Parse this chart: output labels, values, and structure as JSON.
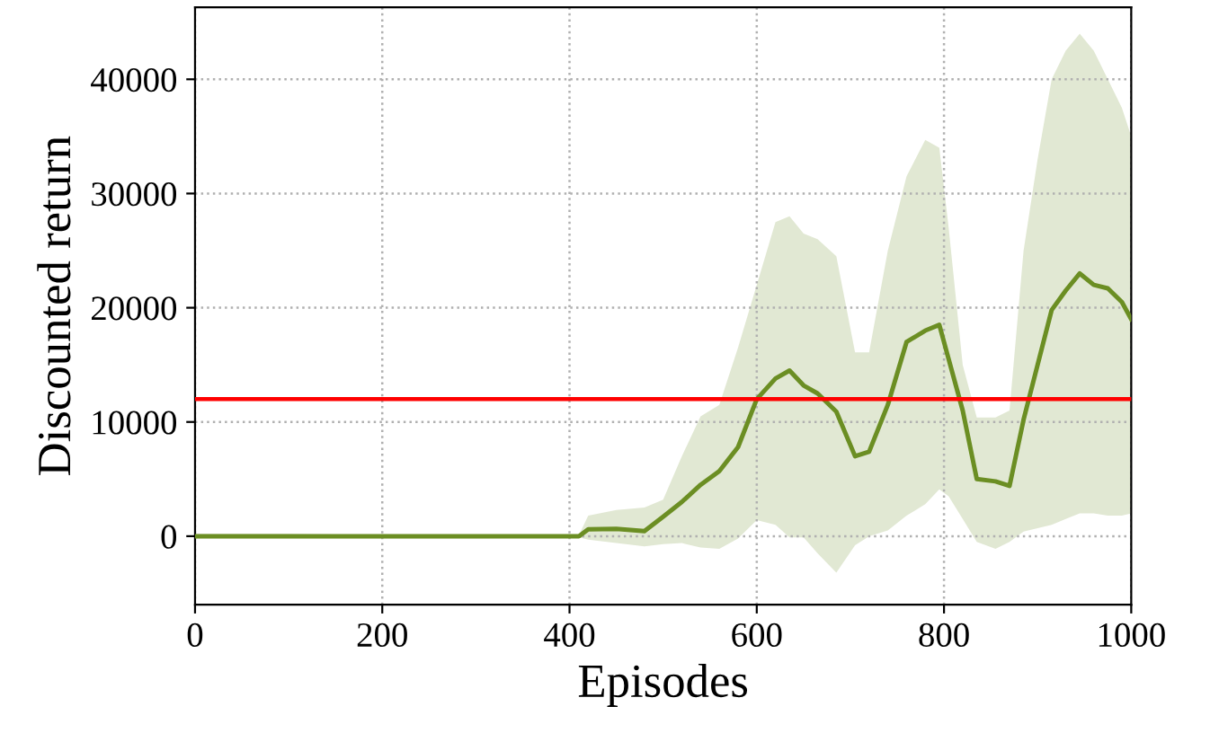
{
  "chart_data": {
    "type": "line",
    "xlabel": "Episodes",
    "ylabel": "Discounted return",
    "x": [
      0,
      100,
      200,
      300,
      400,
      410,
      420,
      450,
      480,
      500,
      520,
      540,
      560,
      580,
      600,
      620,
      635,
      650,
      665,
      685,
      705,
      720,
      740,
      760,
      780,
      795,
      805,
      820,
      835,
      855,
      870,
      885,
      900,
      915,
      930,
      945,
      960,
      975,
      990,
      1000
    ],
    "series": [
      {
        "color": "#6b8e23",
        "values": [
          0,
          0,
          0,
          0,
          0,
          0,
          600,
          650,
          440,
          1700,
          3000,
          4500,
          5700,
          7800,
          12000,
          13800,
          14500,
          13200,
          12500,
          10900,
          7000,
          7400,
          11500,
          17000,
          18000,
          18500,
          15500,
          11000,
          5000,
          4800,
          4400,
          10200,
          15000,
          19800,
          21500,
          23000,
          22000,
          21700,
          20500,
          19000
        ],
        "upper": [
          200,
          200,
          100,
          100,
          100,
          100,
          1800,
          2300,
          2500,
          3200,
          7000,
          10500,
          11500,
          16500,
          22000,
          27500,
          28000,
          26500,
          26000,
          24500,
          16100,
          16100,
          25000,
          31500,
          34700,
          34000,
          27000,
          15000,
          10400,
          10400,
          11000,
          25000,
          33000,
          40000,
          42500,
          44000,
          42500,
          40000,
          37500,
          35000
        ],
        "lower": [
          -200,
          -200,
          -200,
          -200,
          -100,
          -100,
          -300,
          -600,
          -900,
          -700,
          -600,
          -1000,
          -1100,
          -200,
          1400,
          1000,
          -100,
          -100,
          -1500,
          -3200,
          -800,
          0,
          500,
          1800,
          2800,
          4100,
          3500,
          1500,
          -500,
          -1100,
          -500,
          400,
          700,
          1000,
          1500,
          2000,
          2000,
          1800,
          1800,
          2000
        ]
      }
    ],
    "ref_lines": [
      {
        "axis": "y",
        "value": 12000,
        "color": "#ff0000"
      }
    ],
    "xlim": [
      0,
      1000
    ],
    "ylim": [
      -6000,
      46300
    ],
    "xticks": [
      0,
      200,
      400,
      600,
      800,
      1000
    ],
    "yticks": [
      0,
      10000,
      20000,
      30000,
      40000
    ],
    "grid": true,
    "line_style": "solid"
  }
}
